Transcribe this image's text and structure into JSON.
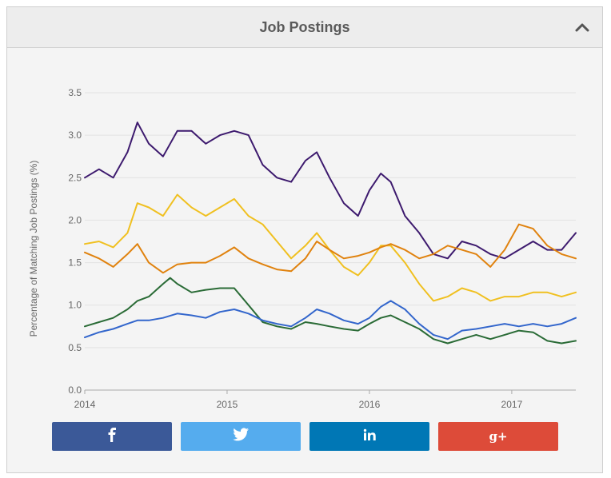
{
  "panel": {
    "title": "Job Postings"
  },
  "share": {
    "facebook": {
      "icon": "facebook-icon",
      "glyph": "f",
      "color": "#3b5998"
    },
    "twitter": {
      "icon": "twitter-icon",
      "glyph": "🐦",
      "color": "#55acee"
    },
    "linkedin": {
      "icon": "linkedin-icon",
      "glyph": "in",
      "color": "#0077b5"
    },
    "googleplus": {
      "icon": "google-plus-icon",
      "glyph": "g+",
      "color": "#dd4b39"
    }
  },
  "chart_data": {
    "type": "line",
    "ylabel": "Percentage of Matching Job Postings (%)",
    "xlabel": "",
    "ylim": [
      0,
      3.5
    ],
    "yticks": [
      "0.0",
      "0.5",
      "1.0",
      "1.5",
      "2.0",
      "2.5",
      "3.0",
      "3.5"
    ],
    "xlim": [
      2014.0,
      2017.45
    ],
    "xticks": [
      {
        "value": 2014,
        "label": "2014"
      },
      {
        "value": 2015,
        "label": "2015"
      },
      {
        "value": 2016,
        "label": "2016"
      },
      {
        "value": 2017,
        "label": "2017"
      }
    ],
    "grid": true,
    "series": [
      {
        "color": "#3d1a6e",
        "x": [
          2014.0,
          2014.1,
          2014.2,
          2014.3,
          2014.37,
          2014.45,
          2014.55,
          2014.65,
          2014.75,
          2014.85,
          2014.95,
          2015.05,
          2015.15,
          2015.25,
          2015.35,
          2015.45,
          2015.55,
          2015.63,
          2015.72,
          2015.82,
          2015.92,
          2016.0,
          2016.08,
          2016.15,
          2016.25,
          2016.35,
          2016.45,
          2016.55,
          2016.65,
          2016.75,
          2016.85,
          2016.95,
          2017.05,
          2017.15,
          2017.25,
          2017.35,
          2017.45
        ],
        "y": [
          2.5,
          2.6,
          2.5,
          2.8,
          3.15,
          2.9,
          2.75,
          3.05,
          3.05,
          2.9,
          3.0,
          3.05,
          3.0,
          2.65,
          2.5,
          2.45,
          2.7,
          2.8,
          2.5,
          2.2,
          2.05,
          2.35,
          2.55,
          2.45,
          2.05,
          1.85,
          1.6,
          1.55,
          1.75,
          1.7,
          1.6,
          1.55,
          1.65,
          1.75,
          1.65,
          1.65,
          1.85
        ]
      },
      {
        "color": "#f0c020",
        "x": [
          2014.0,
          2014.1,
          2014.2,
          2014.3,
          2014.37,
          2014.45,
          2014.55,
          2014.65,
          2014.75,
          2014.85,
          2014.95,
          2015.05,
          2015.15,
          2015.25,
          2015.35,
          2015.45,
          2015.55,
          2015.63,
          2015.72,
          2015.82,
          2015.92,
          2016.0,
          2016.08,
          2016.15,
          2016.25,
          2016.35,
          2016.45,
          2016.55,
          2016.65,
          2016.75,
          2016.85,
          2016.95,
          2017.05,
          2017.15,
          2017.25,
          2017.35,
          2017.45
        ],
        "y": [
          1.72,
          1.75,
          1.68,
          1.85,
          2.2,
          2.15,
          2.05,
          2.3,
          2.15,
          2.05,
          2.15,
          2.25,
          2.05,
          1.95,
          1.75,
          1.55,
          1.7,
          1.85,
          1.65,
          1.45,
          1.35,
          1.5,
          1.7,
          1.7,
          1.5,
          1.25,
          1.05,
          1.1,
          1.2,
          1.15,
          1.05,
          1.1,
          1.1,
          1.15,
          1.15,
          1.1,
          1.15
        ]
      },
      {
        "color": "#e0820e",
        "x": [
          2014.0,
          2014.1,
          2014.2,
          2014.3,
          2014.37,
          2014.45,
          2014.55,
          2014.65,
          2014.75,
          2014.85,
          2014.95,
          2015.05,
          2015.15,
          2015.25,
          2015.35,
          2015.45,
          2015.55,
          2015.63,
          2015.72,
          2015.82,
          2015.92,
          2016.0,
          2016.08,
          2016.15,
          2016.25,
          2016.35,
          2016.45,
          2016.55,
          2016.65,
          2016.75,
          2016.85,
          2016.95,
          2017.05,
          2017.15,
          2017.25,
          2017.35,
          2017.45
        ],
        "y": [
          1.62,
          1.55,
          1.45,
          1.6,
          1.72,
          1.5,
          1.38,
          1.48,
          1.5,
          1.5,
          1.58,
          1.68,
          1.55,
          1.48,
          1.42,
          1.4,
          1.55,
          1.75,
          1.65,
          1.55,
          1.58,
          1.62,
          1.68,
          1.72,
          1.65,
          1.55,
          1.6,
          1.7,
          1.65,
          1.6,
          1.45,
          1.65,
          1.95,
          1.9,
          1.7,
          1.6,
          1.55
        ]
      },
      {
        "color": "#2a6b36",
        "x": [
          2014.0,
          2014.1,
          2014.2,
          2014.3,
          2014.37,
          2014.45,
          2014.55,
          2014.6,
          2014.65,
          2014.75,
          2014.85,
          2014.95,
          2015.05,
          2015.15,
          2015.25,
          2015.35,
          2015.45,
          2015.55,
          2015.63,
          2015.72,
          2015.82,
          2015.92,
          2016.0,
          2016.08,
          2016.15,
          2016.25,
          2016.35,
          2016.45,
          2016.55,
          2016.65,
          2016.75,
          2016.85,
          2016.95,
          2017.05,
          2017.15,
          2017.25,
          2017.35,
          2017.45
        ],
        "y": [
          0.75,
          0.8,
          0.85,
          0.95,
          1.05,
          1.1,
          1.25,
          1.32,
          1.25,
          1.15,
          1.18,
          1.2,
          1.2,
          1.0,
          0.8,
          0.75,
          0.72,
          0.8,
          0.78,
          0.75,
          0.72,
          0.7,
          0.78,
          0.85,
          0.88,
          0.8,
          0.72,
          0.6,
          0.55,
          0.6,
          0.65,
          0.6,
          0.65,
          0.7,
          0.68,
          0.58,
          0.55,
          0.58
        ]
      },
      {
        "color": "#3366cc",
        "x": [
          2014.0,
          2014.1,
          2014.2,
          2014.3,
          2014.37,
          2014.45,
          2014.55,
          2014.65,
          2014.75,
          2014.85,
          2014.95,
          2015.05,
          2015.15,
          2015.25,
          2015.35,
          2015.45,
          2015.55,
          2015.63,
          2015.72,
          2015.82,
          2015.92,
          2016.0,
          2016.08,
          2016.15,
          2016.25,
          2016.35,
          2016.45,
          2016.55,
          2016.65,
          2016.75,
          2016.85,
          2016.95,
          2017.05,
          2017.15,
          2017.25,
          2017.35,
          2017.45
        ],
        "y": [
          0.62,
          0.68,
          0.72,
          0.78,
          0.82,
          0.82,
          0.85,
          0.9,
          0.88,
          0.85,
          0.92,
          0.95,
          0.9,
          0.82,
          0.78,
          0.75,
          0.85,
          0.95,
          0.9,
          0.82,
          0.78,
          0.85,
          0.98,
          1.05,
          0.95,
          0.78,
          0.65,
          0.6,
          0.7,
          0.72,
          0.75,
          0.78,
          0.75,
          0.78,
          0.75,
          0.78,
          0.85
        ]
      }
    ]
  }
}
